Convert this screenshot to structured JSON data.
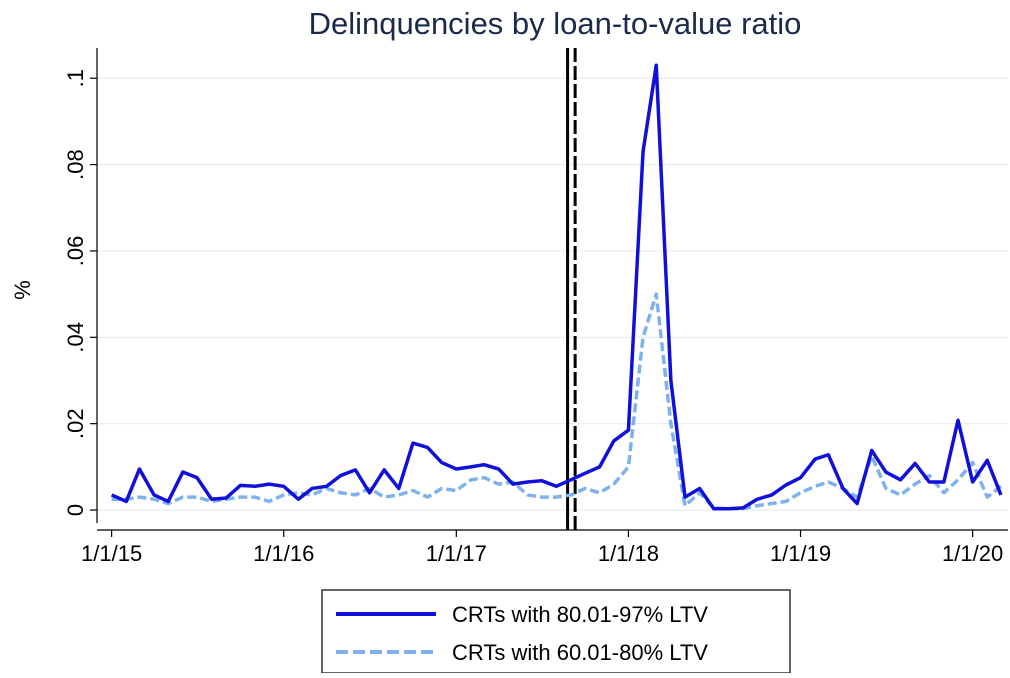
{
  "chart_data": {
    "type": "line",
    "title": "Delinquencies by loan-to-value ratio",
    "y_label": "%",
    "x": [
      "2015-01-01",
      "2015-02-01",
      "2015-03-01",
      "2015-04-01",
      "2015-05-01",
      "2015-06-01",
      "2015-07-01",
      "2015-08-01",
      "2015-09-01",
      "2015-10-01",
      "2015-11-01",
      "2015-12-01",
      "2016-01-01",
      "2016-02-01",
      "2016-03-01",
      "2016-04-01",
      "2016-05-01",
      "2016-06-01",
      "2016-07-01",
      "2016-08-01",
      "2016-09-01",
      "2016-10-01",
      "2016-11-01",
      "2016-12-01",
      "2017-01-01",
      "2017-02-01",
      "2017-03-01",
      "2017-04-01",
      "2017-05-01",
      "2017-06-01",
      "2017-07-01",
      "2017-08-01",
      "2017-09-01",
      "2017-10-01",
      "2017-11-01",
      "2017-12-01",
      "2018-01-01",
      "2018-02-01",
      "2018-03-01",
      "2018-04-01",
      "2018-05-01",
      "2018-06-01",
      "2018-07-01",
      "2018-08-01",
      "2018-09-01",
      "2018-10-01",
      "2018-11-01",
      "2018-12-01",
      "2019-01-01",
      "2019-02-01",
      "2019-03-01",
      "2019-04-01",
      "2019-05-01",
      "2019-06-01",
      "2019-07-01",
      "2019-08-01",
      "2019-09-01",
      "2019-10-01",
      "2019-11-01",
      "2019-12-01",
      "2020-01-01",
      "2020-02-01",
      "2020-03-01"
    ],
    "series": [
      {
        "name": "CRTs with 80.01-97% LTV",
        "color": "#1010d8",
        "dash": false,
        "values": [
          0.0035,
          0.002,
          0.0095,
          0.0035,
          0.002,
          0.0088,
          0.0075,
          0.0025,
          0.0028,
          0.0057,
          0.0055,
          0.006,
          0.0055,
          0.0025,
          0.005,
          0.0055,
          0.008,
          0.0093,
          0.004,
          0.0093,
          0.005,
          0.0155,
          0.0145,
          0.011,
          0.0095,
          0.01,
          0.0105,
          0.0095,
          0.006,
          0.0065,
          0.0068,
          0.0055,
          0.007,
          0.0085,
          0.01,
          0.016,
          0.0185,
          0.083,
          0.103,
          0.03,
          0.003,
          0.005,
          0.0003,
          0.0003,
          0.0005,
          0.0025,
          0.0035,
          0.0058,
          0.0075,
          0.0118,
          0.0128,
          0.005,
          0.0015,
          0.0138,
          0.0088,
          0.007,
          0.0108,
          0.0065,
          0.0065,
          0.0208,
          0.0065,
          0.0115,
          0.0035
        ]
      },
      {
        "name": "CRTs with 60.01-80% LTV",
        "color": "#7eb2ee",
        "dash": true,
        "values": [
          0.0025,
          0.0025,
          0.003,
          0.0025,
          0.0015,
          0.003,
          0.003,
          0.002,
          0.0025,
          0.003,
          0.003,
          0.002,
          0.0035,
          0.004,
          0.0035,
          0.005,
          0.004,
          0.0035,
          0.005,
          0.003,
          0.0035,
          0.0045,
          0.003,
          0.005,
          0.0045,
          0.007,
          0.0075,
          0.006,
          0.0065,
          0.0035,
          0.003,
          0.003,
          0.0035,
          0.005,
          0.004,
          0.006,
          0.01,
          0.04,
          0.05,
          0.02,
          0.001,
          0.004,
          0.0005,
          0.0003,
          0.0003,
          0.001,
          0.0015,
          0.002,
          0.004,
          0.0055,
          0.0065,
          0.005,
          0.003,
          0.0125,
          0.005,
          0.0035,
          0.006,
          0.008,
          0.004,
          0.007,
          0.011,
          0.003,
          0.0055
        ]
      }
    ],
    "vlines": [
      {
        "x": "2017-08-25",
        "dash": false
      },
      {
        "x": "2017-09-10",
        "dash": true
      }
    ],
    "xlim": [
      "2014-12-01",
      "2020-03-16"
    ],
    "xticks": [
      {
        "value": "2015-01-01",
        "label": "1/1/15"
      },
      {
        "value": "2016-01-01",
        "label": "1/1/16"
      },
      {
        "value": "2017-01-01",
        "label": "1/1/17"
      },
      {
        "value": "2018-01-01",
        "label": "1/1/18"
      },
      {
        "value": "2019-01-01",
        "label": "1/1/19"
      },
      {
        "value": "2020-01-01",
        "label": "1/1/20"
      }
    ],
    "ylim": [
      -0.003,
      0.107
    ],
    "yticks": [
      0,
      {
        "value": 0.02,
        "label": ".02"
      },
      {
        "value": 0.04,
        "label": ".04"
      },
      {
        "value": 0.06,
        "label": ".06"
      },
      {
        "value": 0.08,
        "label": ".08"
      },
      {
        "value": 0.1,
        "label": ".1"
      }
    ],
    "grid": true
  }
}
